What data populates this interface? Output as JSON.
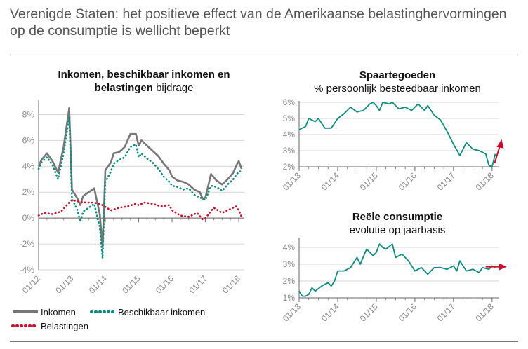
{
  "title": "Verenigde Staten: het positieve effect van de Amerikaanse belastinghervormingen op de consumptie is wellicht beperkt",
  "colors": {
    "inkomen": "#777777",
    "beschikbaar": "#0f8a7e",
    "belastingen": "#c8102e",
    "axis": "#666666",
    "grid": "#d6d6d6",
    "arrow": "#c8102e"
  },
  "chart_data": [
    {
      "type": "line",
      "title_bold": "Inkomen, beschikbaar inkomen en belastingen",
      "title_rest": "bijdrage",
      "title_line1": "Inkomen, beschikbaar inkomen en",
      "title_line2_bold": "belastingen",
      "ylim": [
        -4,
        9
      ],
      "yticks": [
        -4,
        -2,
        0,
        2,
        4,
        6,
        8
      ],
      "ytick_labels": [
        "-4%",
        "-2%",
        "0%",
        "2%",
        "4%",
        "6%",
        "8%"
      ],
      "xticks": [
        "2012-01",
        "2013-01",
        "2014-01",
        "2015-01",
        "2016-01",
        "2017-01",
        "2018-01"
      ],
      "xtick_labels": [
        "01/12",
        "01/13",
        "01/14",
        "01/15",
        "01/16",
        "01/17",
        "01/18"
      ],
      "grid": true,
      "legend_position": "bottom",
      "series": [
        {
          "name": "Inkomen",
          "style": "solid",
          "color_key": "inkomen",
          "x": [
            "2012-01",
            "2012-02",
            "2012-04",
            "2012-06",
            "2012-08",
            "2012-10",
            "2012-12",
            "2013-01",
            "2013-03",
            "2013-04",
            "2013-05",
            "2013-07",
            "2013-09",
            "2013-11",
            "2013-12",
            "2014-01",
            "2014-02",
            "2014-03",
            "2014-04",
            "2014-06",
            "2014-08",
            "2014-10",
            "2014-12",
            "2015-01",
            "2015-02",
            "2015-04",
            "2015-06",
            "2015-08",
            "2015-10",
            "2015-12",
            "2016-01",
            "2016-03",
            "2016-05",
            "2016-07",
            "2016-09",
            "2016-11",
            "2016-12",
            "2017-01",
            "2017-03",
            "2017-05",
            "2017-07",
            "2017-09",
            "2017-11",
            "2017-12",
            "2018-01",
            "2018-02"
          ],
          "values": [
            4.0,
            4.5,
            5.0,
            4.4,
            3.5,
            5.5,
            8.5,
            2.2,
            1.5,
            1.0,
            1.7,
            2.0,
            2.3,
            0.3,
            -2.2,
            3.7,
            4.0,
            4.3,
            5.0,
            5.1,
            5.5,
            6.5,
            6.5,
            5.6,
            6.0,
            5.6,
            5.2,
            4.8,
            4.2,
            3.7,
            3.2,
            2.9,
            2.8,
            2.6,
            2.2,
            2.0,
            1.5,
            1.6,
            3.4,
            2.9,
            2.6,
            3.0,
            3.5,
            4.0,
            4.4,
            3.8
          ]
        },
        {
          "name": "Beschikbaar inkomen",
          "style": "dotted",
          "color_key": "beschikbaar",
          "x": [
            "2012-01",
            "2012-02",
            "2012-04",
            "2012-06",
            "2012-08",
            "2012-10",
            "2012-12",
            "2013-01",
            "2013-03",
            "2013-04",
            "2013-05",
            "2013-07",
            "2013-09",
            "2013-11",
            "2013-12",
            "2014-01",
            "2014-02",
            "2014-03",
            "2014-04",
            "2014-06",
            "2014-08",
            "2014-10",
            "2014-12",
            "2015-01",
            "2015-02",
            "2015-04",
            "2015-06",
            "2015-08",
            "2015-10",
            "2015-12",
            "2016-01",
            "2016-03",
            "2016-05",
            "2016-07",
            "2016-09",
            "2016-11",
            "2016-12",
            "2017-01",
            "2017-03",
            "2017-05",
            "2017-07",
            "2017-09",
            "2017-11",
            "2017-12",
            "2018-01",
            "2018-02"
          ],
          "values": [
            3.8,
            4.3,
            4.7,
            4.1,
            3.0,
            5.0,
            7.8,
            1.5,
            0.6,
            -0.3,
            0.5,
            0.8,
            1.1,
            -0.7,
            -3.1,
            2.8,
            3.2,
            3.6,
            4.2,
            4.5,
            4.7,
            5.5,
            5.7,
            4.7,
            5.0,
            4.6,
            4.3,
            3.8,
            3.2,
            2.8,
            2.5,
            2.4,
            2.2,
            2.3,
            1.8,
            1.6,
            1.5,
            1.4,
            2.5,
            2.4,
            2.1,
            2.6,
            3.0,
            3.3,
            3.6,
            3.6
          ]
        },
        {
          "name": "Belastingen",
          "style": "dotted",
          "color_key": "belastingen",
          "x": [
            "2012-01",
            "2012-03",
            "2012-06",
            "2012-09",
            "2012-12",
            "2013-01",
            "2013-03",
            "2013-06",
            "2013-09",
            "2013-12",
            "2014-03",
            "2014-06",
            "2014-09",
            "2014-12",
            "2015-01",
            "2015-03",
            "2015-06",
            "2015-09",
            "2015-12",
            "2016-01",
            "2016-04",
            "2016-07",
            "2016-10",
            "2016-12",
            "2017-01",
            "2017-04",
            "2017-07",
            "2017-10",
            "2017-12",
            "2018-01",
            "2018-02"
          ],
          "values": [
            0.2,
            0.4,
            0.3,
            0.5,
            1.2,
            1.4,
            1.3,
            1.2,
            1.2,
            1.0,
            0.6,
            0.8,
            0.9,
            1.1,
            1.0,
            1.2,
            1.1,
            0.9,
            1.0,
            0.6,
            0.2,
            0.1,
            0.4,
            -0.1,
            0.0,
            0.8,
            0.4,
            0.7,
            0.9,
            0.6,
            0.1
          ]
        }
      ]
    },
    {
      "type": "line",
      "title": "Spaartegoeden",
      "subtitle": "% persoonlijk besteedbaar inkomen",
      "ylim": [
        2,
        6
      ],
      "yticks": [
        2,
        3,
        4,
        5,
        6
      ],
      "ytick_labels": [
        "2%",
        "3%",
        "4%",
        "5%",
        "6%"
      ],
      "xticks": [
        "2013-01",
        "2014-01",
        "2015-01",
        "2016-01",
        "2017-01",
        "2018-01"
      ],
      "xtick_labels": [
        "01/13",
        "01/14",
        "01/15",
        "01/16",
        "01/17",
        "01/18"
      ],
      "grid": true,
      "arrow": "up",
      "series": [
        {
          "color_key": "beschikbaar",
          "x": [
            "2013-01",
            "2013-03",
            "2013-04",
            "2013-06",
            "2013-07",
            "2013-09",
            "2013-11",
            "2014-01",
            "2014-03",
            "2014-05",
            "2014-07",
            "2014-09",
            "2014-11",
            "2014-12",
            "2015-01",
            "2015-02",
            "2015-03",
            "2015-05",
            "2015-06",
            "2015-08",
            "2015-10",
            "2015-12",
            "2016-02",
            "2016-04",
            "2016-05",
            "2016-07",
            "2016-09",
            "2016-11",
            "2017-01",
            "2017-03",
            "2017-05",
            "2017-07",
            "2017-09",
            "2017-11",
            "2017-12",
            "2018-01",
            "2018-02"
          ],
          "values": [
            4.3,
            4.5,
            5.0,
            4.8,
            5.0,
            4.4,
            4.4,
            5.0,
            5.3,
            5.7,
            5.4,
            5.5,
            5.9,
            6.0,
            5.8,
            5.5,
            6.0,
            5.9,
            6.0,
            5.6,
            5.7,
            5.5,
            5.9,
            5.5,
            5.8,
            5.2,
            4.9,
            4.2,
            3.4,
            2.7,
            3.5,
            3.1,
            3.0,
            2.8,
            2.1,
            2.0,
            2.8
          ]
        }
      ]
    },
    {
      "type": "line",
      "title": "Reële consumptie",
      "subtitle": "evolutie op jaarbasis",
      "ylim": [
        1,
        4.5
      ],
      "yticks": [
        1,
        2,
        3,
        4
      ],
      "ytick_labels": [
        "1%",
        "2%",
        "3%",
        "4%"
      ],
      "xticks": [
        "2013-01",
        "2014-01",
        "2015-01",
        "2016-01",
        "2017-01",
        "2018-01"
      ],
      "xtick_labels": [
        "01/13",
        "01/14",
        "01/15",
        "01/16",
        "01/17",
        "01/18"
      ],
      "grid": true,
      "arrow": "right",
      "series": [
        {
          "color_key": "beschikbaar",
          "x": [
            "2013-01",
            "2013-02",
            "2013-03",
            "2013-04",
            "2013-05",
            "2013-06",
            "2013-08",
            "2013-10",
            "2013-11",
            "2013-12",
            "2014-01",
            "2014-03",
            "2014-05",
            "2014-07",
            "2014-08",
            "2014-10",
            "2014-12",
            "2015-01",
            "2015-02",
            "2015-03",
            "2015-04",
            "2015-06",
            "2015-07",
            "2015-09",
            "2015-11",
            "2016-01",
            "2016-03",
            "2016-05",
            "2016-07",
            "2016-09",
            "2016-11",
            "2017-01",
            "2017-02",
            "2017-03",
            "2017-05",
            "2017-07",
            "2017-09",
            "2017-10",
            "2017-12",
            "2018-01",
            "2018-02"
          ],
          "values": [
            1.4,
            1.1,
            1.1,
            1.2,
            1.6,
            1.4,
            1.7,
            1.9,
            1.7,
            2.0,
            2.6,
            2.6,
            2.8,
            3.4,
            3.0,
            3.9,
            3.5,
            3.7,
            4.2,
            4.0,
            3.9,
            4.2,
            3.4,
            3.6,
            3.2,
            2.6,
            2.8,
            2.4,
            2.8,
            2.8,
            2.7,
            2.9,
            2.6,
            3.2,
            2.6,
            2.7,
            2.5,
            2.8,
            2.7,
            2.9,
            2.8
          ]
        }
      ]
    }
  ]
}
